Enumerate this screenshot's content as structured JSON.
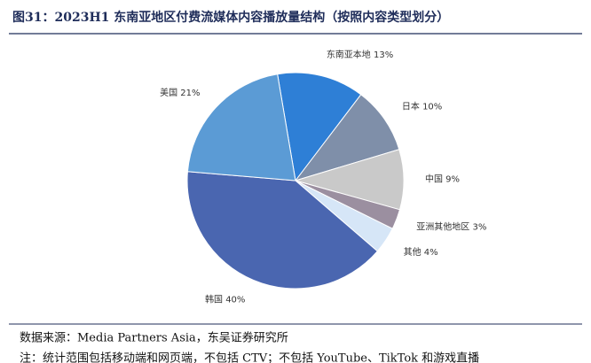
{
  "title": "图31：2023H1 东南亚地区付费流媒体内容播放量结构（按照内容类型划分）",
  "chart_data": {
    "type": "pie",
    "categories": [
      "东南亚本地",
      "日本",
      "中国",
      "亚洲其他地区",
      "其他",
      "韩国",
      "美国"
    ],
    "values": [
      13,
      10,
      9,
      3,
      4,
      40,
      21
    ],
    "value_labels": [
      "13%",
      "10%",
      "9%",
      "3%",
      "4%",
      "40%",
      "21%"
    ],
    "colors": [
      "#2e7fd6",
      "#7f8fa9",
      "#c9c9c9",
      "#9b8fa0",
      "#d6e6f7",
      "#4a66b0",
      "#5b9bd5"
    ]
  },
  "source": "数据来源：Media Partners Asia，东吴证券研究所",
  "note": "注：统计范围包括移动端和网页端，不包括 CTV；不包括 YouTube、TikTok 和游戏直播"
}
